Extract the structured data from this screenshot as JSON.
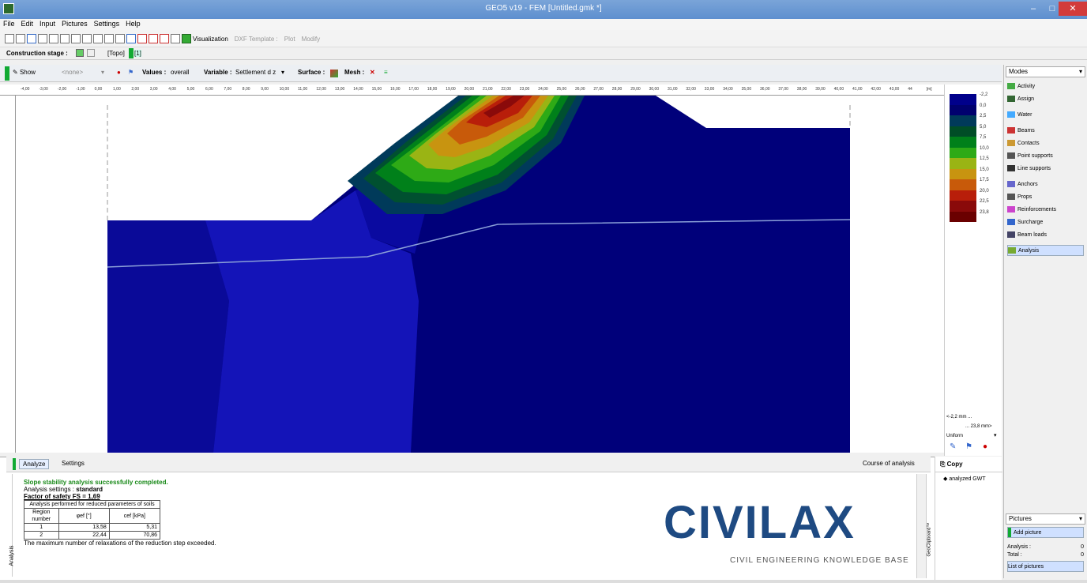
{
  "window": {
    "title": "GEO5 v19 - FEM [Untitled.gmk *]",
    "min": "–",
    "max": "□",
    "close": "✕"
  },
  "menu": [
    "File",
    "Edit",
    "Input",
    "Pictures",
    "Settings",
    "Help"
  ],
  "toolbar": {
    "visualization": "Visualization",
    "dxf_template": "DXF Template :",
    "plot": "Plot",
    "modify": "Modify"
  },
  "stage": {
    "label": "Construction stage :",
    "topo": "[Topo]",
    "stage1": "[1]"
  },
  "viewbar": {
    "show": "Show",
    "none": "<none>",
    "values_label": "Values :",
    "values": "overall",
    "variable_label": "Variable :",
    "variable": "Settlement d z",
    "surface_label": "Surface :",
    "mesh_label": "Mesh :"
  },
  "ruler_ticks": [
    "-4,00",
    "-3,00",
    "-2,00",
    "-1,00",
    "0,00",
    "1,00",
    "2,00",
    "3,00",
    "4,00",
    "5,00",
    "6,00",
    "7,00",
    "8,00",
    "9,00",
    "10,00",
    "11,00",
    "12,00",
    "13,00",
    "14,00",
    "15,00",
    "16,00",
    "17,00",
    "18,00",
    "19,00",
    "20,00",
    "21,00",
    "22,00",
    "23,00",
    "24,00",
    "25,00",
    "26,00",
    "27,00",
    "28,00",
    "29,00",
    "30,00",
    "31,00",
    "32,00",
    "33,00",
    "34,00",
    "35,00",
    "36,00",
    "37,00",
    "38,00",
    "39,00",
    "40,00",
    "41,00",
    "42,00",
    "43,00",
    "44",
    "[m]"
  ],
  "legend": {
    "values": [
      "-2,2",
      "0,0",
      "2,5",
      "5,0",
      "7,5",
      "10,0",
      "12,5",
      "15,0",
      "17,5",
      "20,0",
      "22,5",
      "23,8"
    ],
    "colors": [
      "#00008b",
      "#00006e",
      "#003a5a",
      "#004d26",
      "#00801a",
      "#2eaa16",
      "#9ab414",
      "#c89410",
      "#c85a0a",
      "#b81e0a",
      "#8a0a0a",
      "#6a0000"
    ],
    "min_label": "<-2,2 mm ...",
    "max_label": "... 23,8 mm>",
    "scale": "Uniform"
  },
  "modes": {
    "header": "Modes",
    "items": [
      {
        "label": "Activity",
        "color": "#4a4"
      },
      {
        "label": "Assign",
        "color": "#363"
      },
      {
        "label": "Water",
        "color": "#4af"
      },
      {
        "label": "Beams",
        "color": "#c33"
      },
      {
        "label": "Contacts",
        "color": "#c93"
      },
      {
        "label": "Point supports",
        "color": "#555"
      },
      {
        "label": "Line supports",
        "color": "#333"
      },
      {
        "label": "Anchors",
        "color": "#66c"
      },
      {
        "label": "Props",
        "color": "#555"
      },
      {
        "label": "Reinforcements",
        "color": "#c4c"
      },
      {
        "label": "Surcharge",
        "color": "#36c"
      },
      {
        "label": "Beam loads",
        "color": "#446"
      },
      {
        "label": "Analysis",
        "color": "#7a3"
      }
    ]
  },
  "pictures": {
    "header": "Pictures",
    "add": "Add picture",
    "analysis_label": "Analysis :",
    "analysis_value": "0",
    "total_label": "Total :",
    "total_value": "0",
    "list": "List of pictures"
  },
  "bottom": {
    "tab_analyze": "Analyze",
    "tab_settings": "Settings",
    "course": "Course of analysis",
    "copy": "Copy",
    "copy_item": "analyzed GWT",
    "side_label": "Analysis",
    "side_label2": "GeoClipboard™"
  },
  "output": {
    "success": "Slope stability analysis successfully completed.",
    "settings_prefix": "Analysis settings : ",
    "settings_value": "standard",
    "fos": "Factor of safety FS = 1,69",
    "table_caption": "Analysis performed for reduced parameters of soils",
    "col_region": "Region number",
    "col_phi": "φef [°]",
    "col_c": "cef [kPa]",
    "rows": [
      {
        "n": "1",
        "phi": "13,58",
        "c": "5,31"
      },
      {
        "n": "2",
        "phi": "22,44",
        "c": "70,86"
      }
    ],
    "warning": "The maximum number of relaxations of the reduction step exceeded."
  },
  "brand": {
    "name": "CIVILAX",
    "tagline": "CIVIL ENGINEERING KNOWLEDGE BASE"
  }
}
